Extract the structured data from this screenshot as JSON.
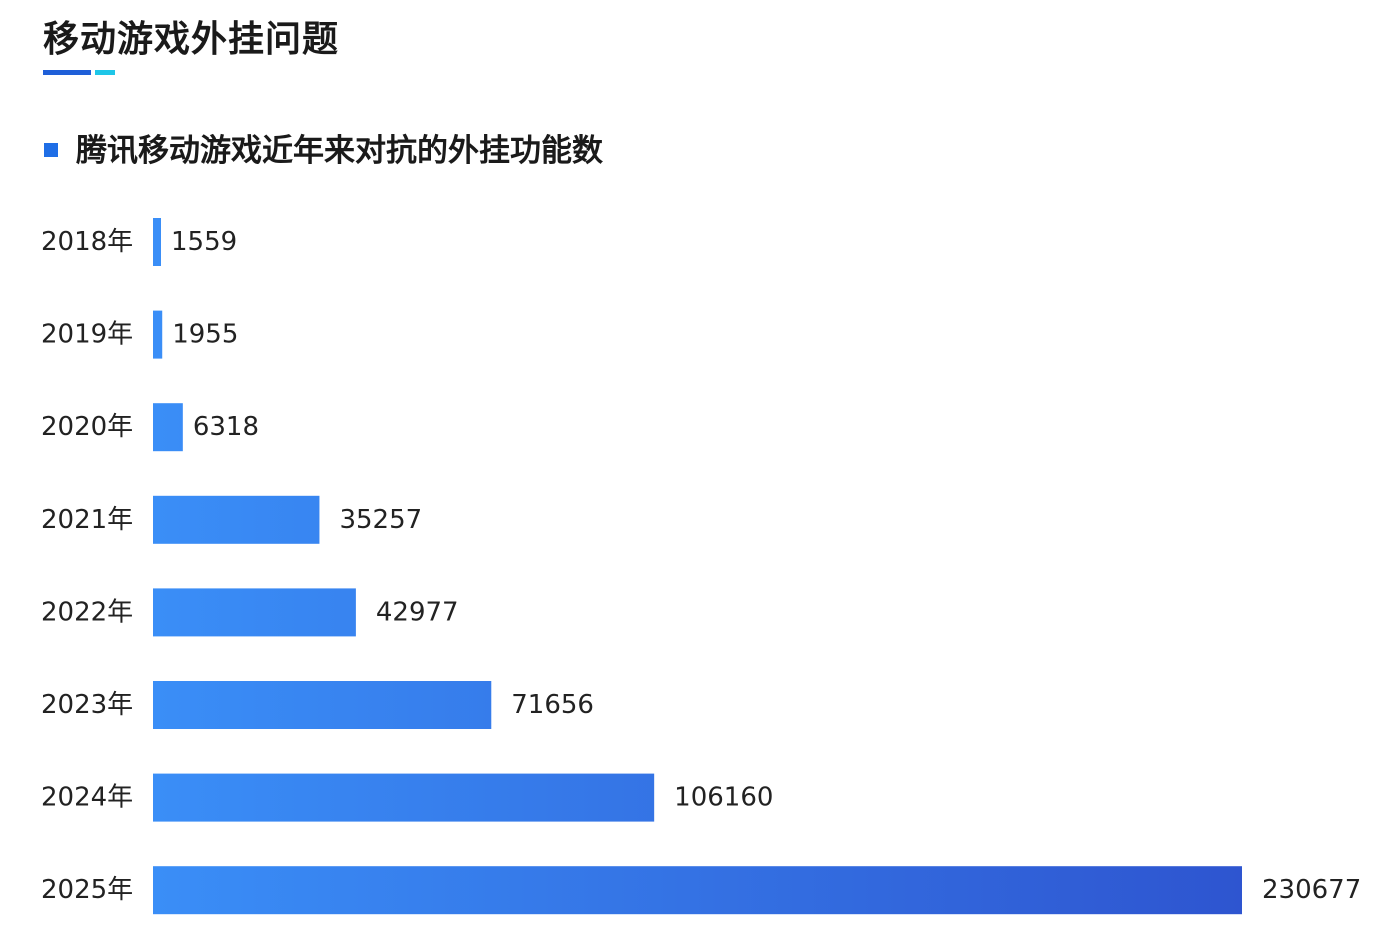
{
  "header": {
    "title": "移动游戏外挂问题",
    "accent_colors": [
      "#1f5fd8",
      "#1ec6e8"
    ]
  },
  "chart_data": {
    "type": "bar",
    "orientation": "horizontal",
    "title": "腾讯移动游戏近年来对抗的外挂功能数",
    "xlabel": "",
    "ylabel": "",
    "categories": [
      "2018年",
      "2019年",
      "2020年",
      "2021年",
      "2022年",
      "2023年",
      "2024年",
      "2025年"
    ],
    "values": [
      1559,
      1955,
      6318,
      35257,
      42977,
      71656,
      106160,
      230677
    ],
    "data_labels": [
      "1559",
      "1955",
      "6318",
      "35257",
      "42977",
      "71656",
      "106160",
      "230677"
    ],
    "xlim": [
      0,
      230677
    ],
    "grid": false,
    "legend": "none",
    "bar_gradient": [
      "#3a8ef7",
      "#2e55d0"
    ]
  }
}
